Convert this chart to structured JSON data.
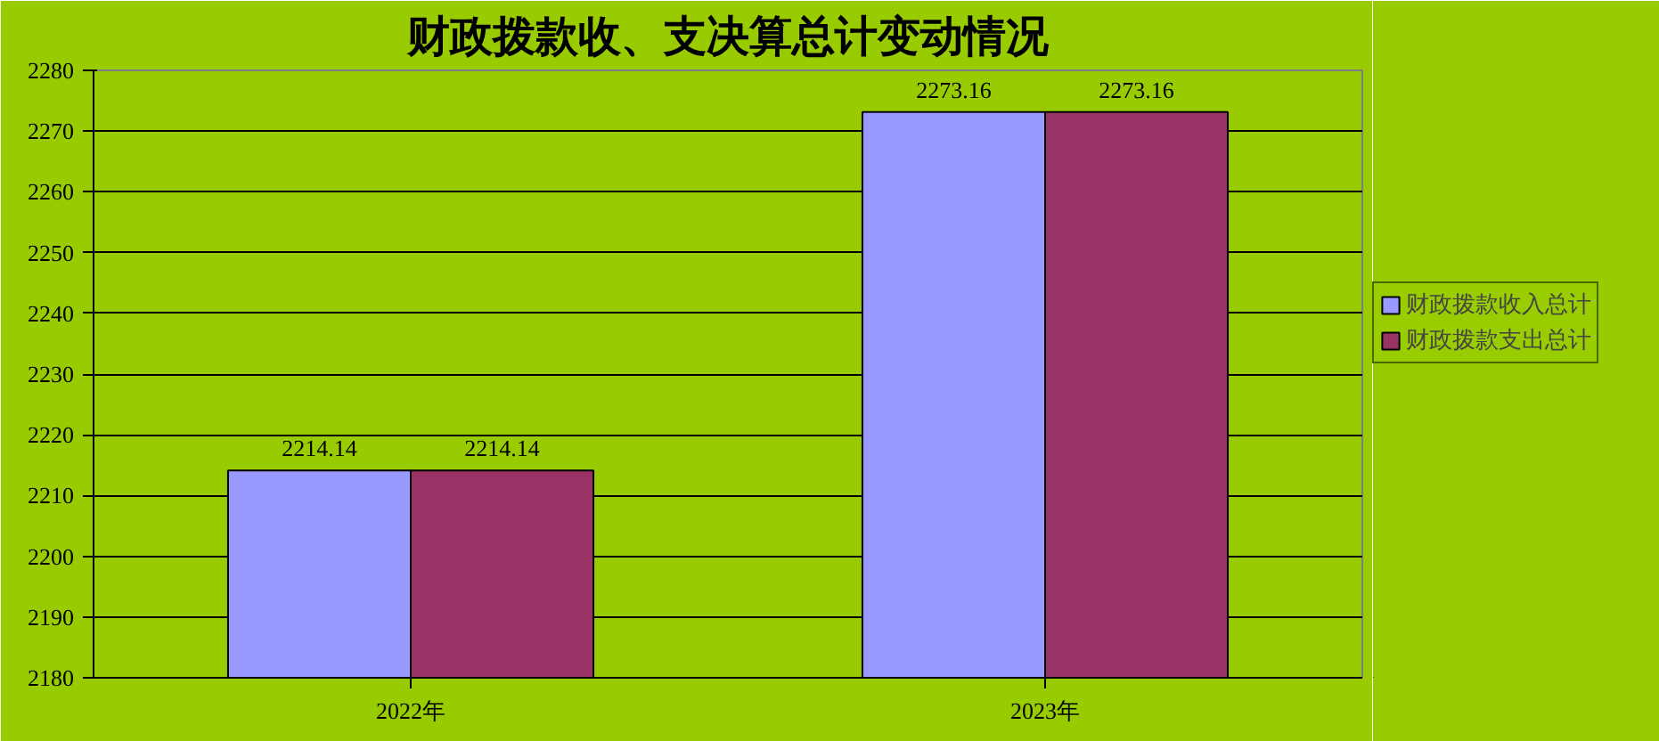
{
  "chart_data": {
    "type": "bar",
    "title": "财政拨款收、支决算总计变动情况",
    "categories": [
      "2022年",
      "2023年"
    ],
    "series": [
      {
        "name": "财政拨款收入总计",
        "color": "#9999ff",
        "values": [
          2214.14,
          2273.16
        ]
      },
      {
        "name": "财政拨款支出总计",
        "color": "#993366",
        "values": [
          2214.14,
          2273.16
        ]
      }
    ],
    "ylim": [
      2180,
      2280
    ],
    "yticks": [
      2180,
      2190,
      2200,
      2210,
      2220,
      2230,
      2240,
      2250,
      2260,
      2270,
      2280
    ],
    "grid": "y",
    "legend": "right",
    "data_labels": true
  }
}
